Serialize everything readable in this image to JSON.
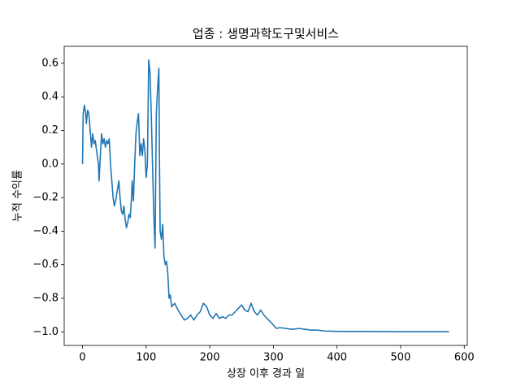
{
  "chart_data": {
    "type": "line",
    "title": "업종 : 생명과학도구및서비스",
    "xlabel": "상장 이후 경과 일",
    "ylabel": "누적 수익률",
    "x": [
      0,
      1,
      3,
      5,
      6,
      8,
      10,
      12,
      14,
      16,
      18,
      20,
      22,
      25,
      26,
      28,
      30,
      32,
      34,
      36,
      38,
      40,
      42,
      44,
      46,
      48,
      50,
      52,
      55,
      57,
      59,
      61,
      63,
      65,
      67,
      69,
      71,
      73,
      75,
      77,
      78,
      80,
      82,
      84,
      86,
      88,
      89,
      90,
      92,
      94,
      96,
      98,
      100,
      102,
      104,
      106,
      108,
      110,
      112,
      114,
      116,
      118,
      120,
      121,
      122,
      124,
      126,
      128,
      130,
      132,
      134,
      136,
      138,
      140,
      145,
      150,
      155,
      160,
      165,
      170,
      175,
      180,
      185,
      190,
      195,
      200,
      205,
      210,
      215,
      220,
      225,
      230,
      235,
      240,
      245,
      250,
      255,
      260,
      265,
      270,
      275,
      280,
      285,
      290,
      295,
      300,
      305,
      310,
      320,
      330,
      340,
      350,
      360,
      370,
      380,
      400,
      420,
      450,
      500,
      550,
      576
    ],
    "series": [
      {
        "name": "누적 수익률",
        "color": "#1f77b4",
        "values": [
          0.0,
          0.3,
          0.35,
          0.3,
          0.24,
          0.32,
          0.3,
          0.2,
          0.1,
          0.18,
          0.12,
          0.14,
          0.08,
          0.0,
          -0.1,
          0.05,
          0.18,
          0.12,
          0.15,
          0.1,
          0.14,
          0.12,
          0.15,
          0.0,
          -0.1,
          -0.2,
          -0.25,
          -0.22,
          -0.15,
          -0.1,
          -0.2,
          -0.28,
          -0.3,
          -0.25,
          -0.33,
          -0.38,
          -0.35,
          -0.3,
          -0.32,
          -0.2,
          -0.1,
          -0.22,
          0.0,
          0.18,
          0.25,
          0.3,
          0.18,
          0.05,
          0.12,
          0.05,
          0.15,
          0.08,
          -0.08,
          0.0,
          0.62,
          0.55,
          0.3,
          0.0,
          -0.3,
          -0.5,
          0.3,
          0.45,
          0.57,
          0.0,
          -0.4,
          -0.45,
          -0.36,
          -0.55,
          -0.6,
          -0.58,
          -0.65,
          -0.8,
          -0.78,
          -0.85,
          -0.83,
          -0.87,
          -0.9,
          -0.93,
          -0.92,
          -0.9,
          -0.93,
          -0.9,
          -0.88,
          -0.83,
          -0.85,
          -0.9,
          -0.92,
          -0.89,
          -0.92,
          -0.91,
          -0.92,
          -0.9,
          -0.9,
          -0.88,
          -0.86,
          -0.84,
          -0.87,
          -0.88,
          -0.83,
          -0.88,
          -0.9,
          -0.87,
          -0.9,
          -0.92,
          -0.94,
          -0.96,
          -0.98,
          -0.975,
          -0.98,
          -0.985,
          -0.98,
          -0.985,
          -0.99,
          -0.99,
          -0.995,
          -0.997,
          -0.998,
          -0.998,
          -0.999,
          -0.999,
          -0.999
        ]
      }
    ],
    "xlim": [
      -28.8,
      604.8
    ],
    "ylim": [
      -1.081,
      0.701
    ],
    "xticks": [
      0,
      100,
      200,
      300,
      400,
      500,
      600
    ],
    "yticks": [
      {
        "value": -1.0,
        "label": "−1.0"
      },
      {
        "value": -0.8,
        "label": "−0.8"
      },
      {
        "value": -0.6,
        "label": "−0.6"
      },
      {
        "value": -0.4,
        "label": "−0.4"
      },
      {
        "value": -0.2,
        "label": "−0.2"
      },
      {
        "value": 0.0,
        "label": "0.0"
      },
      0.2,
      0.4,
      0.6
    ],
    "grid": false
  }
}
